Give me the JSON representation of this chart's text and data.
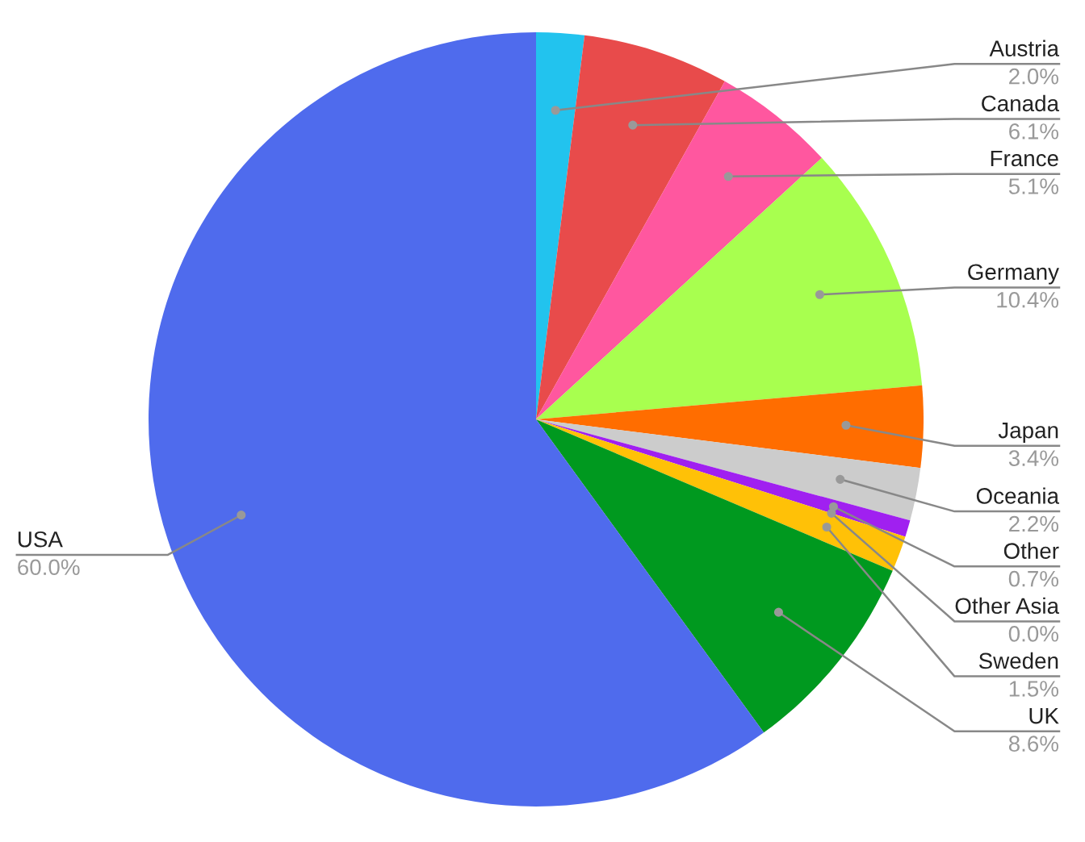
{
  "chart_data": {
    "type": "pie",
    "categories": [
      "Austria",
      "Canada",
      "France",
      "Germany",
      "Japan",
      "Oceania",
      "Other",
      "Other Asia",
      "Sweden",
      "UK",
      "USA"
    ],
    "values": [
      2.0,
      6.1,
      5.1,
      10.4,
      3.4,
      2.2,
      0.7,
      0.0,
      1.5,
      8.6,
      60.0
    ],
    "value_labels": [
      "2.0%",
      "6.1%",
      "5.1%",
      "10.4%",
      "3.4%",
      "2.2%",
      "0.7%",
      "0.0%",
      "1.5%",
      "8.6%",
      "60.0%"
    ],
    "colors": [
      "#22c3ee",
      "#e84b4b",
      "#ff579f",
      "#a8ff4f",
      "#ff6d00",
      "#cccccc",
      "#a020f0",
      "#3f51b5",
      "#ffc107",
      "#00991f",
      "#4f6bed"
    ]
  }
}
